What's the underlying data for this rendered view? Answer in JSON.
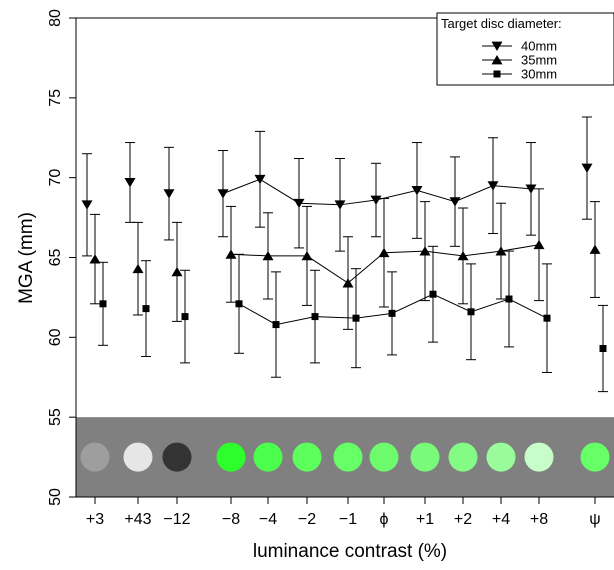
{
  "chart_data": {
    "type": "line",
    "title": "",
    "xlabel": "luminance contrast (%)",
    "ylabel": "MGA (mm)",
    "ylim": [
      50,
      80
    ],
    "yticks": [
      50,
      55,
      60,
      65,
      70,
      75,
      80
    ],
    "categories": [
      "+3",
      "+43",
      "−12",
      "−8",
      "−4",
      "−2",
      "−1",
      "ϕ",
      "+1",
      "+2",
      "+4",
      "+8",
      "ψ"
    ],
    "line_segments": [
      [
        3,
        11
      ]
    ],
    "legend": {
      "title": "Target disc diameter:",
      "position": "top-right"
    },
    "series": [
      {
        "name": "40mm",
        "marker": "triangle-down",
        "values": [
          68.3,
          69.7,
          69.0,
          69.0,
          69.9,
          68.4,
          68.3,
          68.6,
          69.2,
          68.5,
          69.5,
          69.3,
          70.6
        ],
        "errors": [
          3.2,
          2.5,
          2.9,
          2.7,
          3.0,
          2.8,
          2.9,
          2.3,
          3.0,
          2.8,
          3.0,
          2.9,
          3.2
        ]
      },
      {
        "name": "35mm",
        "marker": "triangle-up",
        "values": [
          64.9,
          64.3,
          64.1,
          65.2,
          65.1,
          65.1,
          63.4,
          65.3,
          65.4,
          65.1,
          65.4,
          65.8,
          65.5
        ],
        "errors": [
          2.8,
          2.9,
          3.1,
          3.0,
          2.7,
          3.1,
          2.9,
          3.4,
          3.1,
          3.0,
          3.0,
          3.5,
          3.0
        ]
      },
      {
        "name": "30mm",
        "marker": "square",
        "values": [
          62.1,
          61.8,
          61.3,
          62.1,
          60.8,
          61.3,
          61.2,
          61.5,
          62.7,
          61.6,
          62.4,
          61.2,
          59.3
        ],
        "errors": [
          2.6,
          3.0,
          2.9,
          3.1,
          3.3,
          2.9,
          3.1,
          2.6,
          3.0,
          3.0,
          3.0,
          3.4,
          2.7
        ]
      }
    ],
    "background_band": {
      "y_range": [
        50,
        55
      ],
      "color": "#808080",
      "disc_colors": [
        "#9e9e9e",
        "#e6e6e6",
        "#333333",
        "#2dff2d",
        "#4dff4d",
        "#5cff5c",
        "#66ff66",
        "#6dfb6d",
        "#79fb79",
        "#84fb84",
        "#99fb99",
        "#c8fcc8",
        "#66ff66"
      ]
    }
  }
}
